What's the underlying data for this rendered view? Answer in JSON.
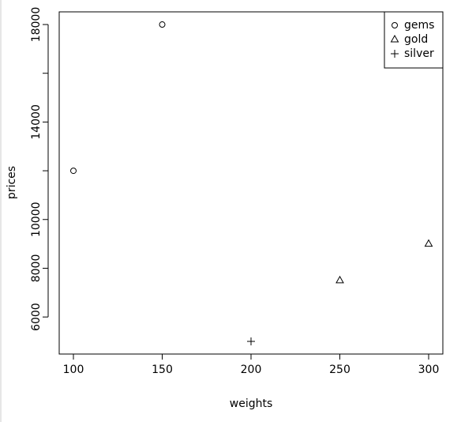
{
  "chart_data": {
    "type": "scatter",
    "x_label": "weights",
    "y_label": "prices",
    "xlim": [
      92,
      308
    ],
    "ylim": [
      4480,
      18520
    ],
    "xticks": [
      100,
      150,
      200,
      250,
      300
    ],
    "yticks": [
      6000,
      8000,
      10000,
      14000,
      18000
    ],
    "yminor_ticks": [
      12000,
      16000
    ],
    "legend": "topright",
    "series": [
      {
        "name": "gems",
        "color": "#000000",
        "marker": "circle",
        "x": [
          100,
          150
        ],
        "values": [
          12000,
          18000
        ]
      },
      {
        "name": "gold",
        "color": "#000000",
        "marker": "triangle",
        "x": [
          250,
          300
        ],
        "values": [
          7500,
          9000
        ]
      },
      {
        "name": "silver",
        "color": "#000000",
        "marker": "plus",
        "x": [
          200
        ],
        "values": [
          5000
        ]
      }
    ]
  }
}
